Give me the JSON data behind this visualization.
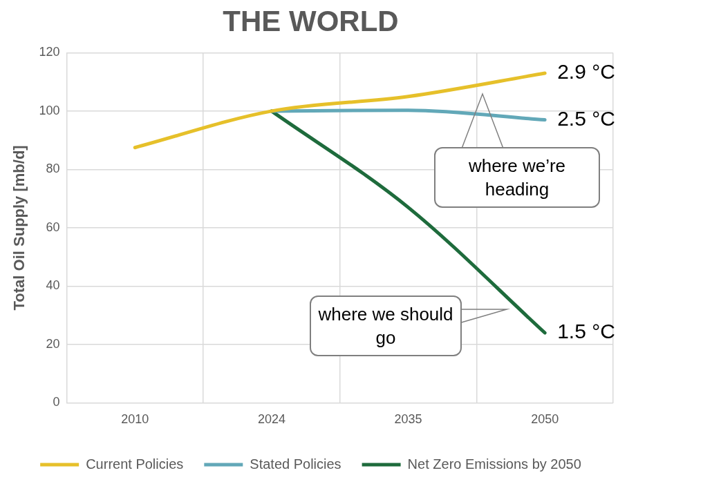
{
  "chart_data": {
    "type": "line",
    "title": "THE WORLD",
    "ylabel": "Total Oil Supply [mb/d]",
    "categories": [
      "2010",
      "2024",
      "2035",
      "2050"
    ],
    "series": [
      {
        "name": "Current Policies",
        "color": "#e6c02a",
        "values": [
          87.5,
          100,
          105,
          113
        ]
      },
      {
        "name": "Stated Policies",
        "color": "#62a8b8",
        "values": [
          null,
          100,
          100.3,
          97
        ]
      },
      {
        "name": "Net Zero Emissions by 2050",
        "color": "#1e6b3c",
        "values": [
          null,
          100,
          67,
          24
        ]
      }
    ],
    "ylim": [
      0,
      120
    ],
    "yticks": [
      0,
      20,
      40,
      60,
      80,
      100,
      120
    ],
    "grid": true,
    "legend": "bottom",
    "marker": "none",
    "line_style": "solid",
    "annotations": [
      {
        "text": "2.9 °C",
        "x": "2050",
        "y": 113
      },
      {
        "text": "2.5 °C",
        "x": "2050",
        "y": 97
      },
      {
        "text": "1.5 °C",
        "x": "2050",
        "y": 24
      },
      "where we’re heading",
      "where we should go"
    ]
  }
}
